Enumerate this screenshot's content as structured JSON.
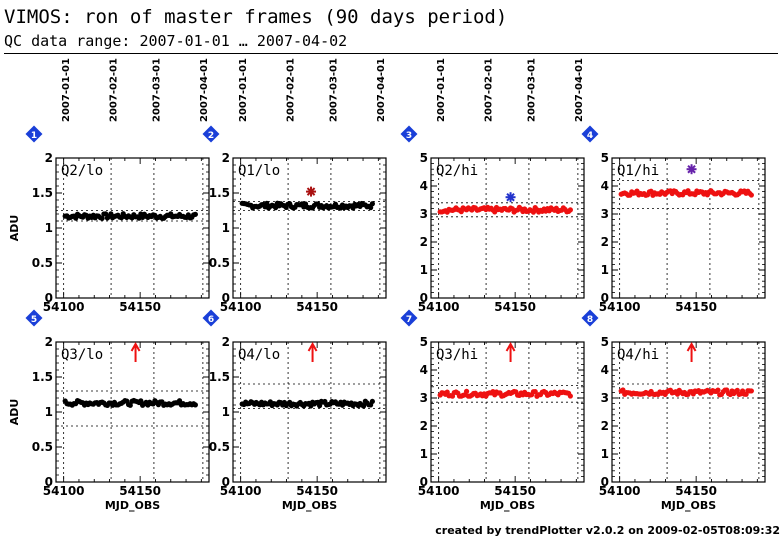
{
  "title": "VIMOS: ron of master frames (90 days period)",
  "subtitle": "QC data range: 2007-01-01 … 2007-04-02",
  "credit": "created by trendPlotter v2.0.2 on 2009-02-05T08:09:32",
  "chart_data": [
    {
      "type": "scatter",
      "panel": "1",
      "label": "Q2/lo",
      "ylim": [
        0,
        2
      ],
      "yticks": [
        "0",
        "0.5",
        "1",
        "1.5",
        "2"
      ],
      "ylabel": "ADU",
      "xlim": [
        54095,
        54195
      ],
      "xticks": [
        "54100",
        "54150"
      ],
      "xlabel": "",
      "top_dates": [
        "2007-01-01",
        "2007-02-01",
        "2007-03-01",
        "2007-04-01"
      ],
      "color": "#000000",
      "mean": 1.17,
      "band": [
        1.1,
        1.25
      ],
      "outlier": null,
      "arrow": false
    },
    {
      "type": "scatter",
      "panel": "2",
      "label": "Q1/lo",
      "ylim": [
        0,
        2
      ],
      "yticks": [
        "0",
        "0.5",
        "1",
        "1.5",
        "2"
      ],
      "ylabel": "",
      "xlim": [
        54095,
        54195
      ],
      "xticks": [
        "54100",
        "54150"
      ],
      "xlabel": "",
      "top_dates": [
        "2007-01-01",
        "2007-02-01",
        "2007-03-01",
        "2007-04-01"
      ],
      "color": "#000000",
      "mean": 1.32,
      "band": [
        1.25,
        1.38
      ],
      "outlier": {
        "x": 54146,
        "y": 1.52,
        "color": "#aa1111"
      },
      "arrow": false
    },
    {
      "type": "scatter",
      "panel": "3",
      "label": "Q2/hi",
      "ylim": [
        0,
        5
      ],
      "yticks": [
        "0",
        "1",
        "2",
        "3",
        "4",
        "5"
      ],
      "ylabel": "",
      "xlim": [
        54095,
        54195
      ],
      "xticks": [
        "54100",
        "54150"
      ],
      "xlabel": "",
      "top_dates": [
        "2007-01-01",
        "2007-02-01",
        "2007-03-01",
        "2007-04-01"
      ],
      "color": "#ee1111",
      "mean": 3.15,
      "band": [
        2.9,
        3.4
      ],
      "outlier": {
        "x": 54147,
        "y": 3.6,
        "color": "#2233cc"
      },
      "arrow": false
    },
    {
      "type": "scatter",
      "panel": "4",
      "label": "Q1/hi",
      "ylim": [
        0,
        5
      ],
      "yticks": [
        "0",
        "1",
        "2",
        "3",
        "4",
        "5"
      ],
      "ylabel": "",
      "xlim": [
        54095,
        54195
      ],
      "xticks": [
        "54100",
        "54150"
      ],
      "xlabel": "",
      "top_dates": [],
      "color": "#ee1111",
      "mean": 3.75,
      "band": [
        3.2,
        4.2
      ],
      "outlier": {
        "x": 54147,
        "y": 4.6,
        "color": "#6622aa"
      },
      "arrow": false
    },
    {
      "type": "scatter",
      "panel": "5",
      "label": "Q3/lo",
      "ylim": [
        0,
        2
      ],
      "yticks": [
        "0",
        "0.5",
        "1",
        "1.5",
        "2"
      ],
      "ylabel": "ADU",
      "xlim": [
        54095,
        54195
      ],
      "xticks": [
        "54100",
        "54150"
      ],
      "xlabel": "MJD_OBS",
      "top_dates": [],
      "color": "#000000",
      "mean": 1.13,
      "band": [
        0.8,
        1.3
      ],
      "outlier": null,
      "arrow": true
    },
    {
      "type": "scatter",
      "panel": "6",
      "label": "Q4/lo",
      "ylim": [
        0,
        2
      ],
      "yticks": [
        "0",
        "0.5",
        "1",
        "1.5",
        "2"
      ],
      "ylabel": "",
      "xlim": [
        54095,
        54195
      ],
      "xticks": [
        "54100",
        "54150"
      ],
      "xlabel": "MJD_OBS",
      "top_dates": [],
      "color": "#000000",
      "mean": 1.12,
      "band": [
        1.05,
        1.4
      ],
      "outlier": null,
      "arrow": true
    },
    {
      "type": "scatter",
      "panel": "7",
      "label": "Q3/hi",
      "ylim": [
        0,
        5
      ],
      "yticks": [
        "0",
        "1",
        "2",
        "3",
        "4",
        "5"
      ],
      "ylabel": "",
      "xlim": [
        54095,
        54195
      ],
      "xticks": [
        "54100",
        "54150"
      ],
      "xlabel": "MJD_OBS",
      "top_dates": [],
      "color": "#ee1111",
      "mean": 3.15,
      "band": [
        2.85,
        3.45
      ],
      "outlier": null,
      "arrow": true
    },
    {
      "type": "scatter",
      "panel": "8",
      "label": "Q4/hi",
      "ylim": [
        0,
        5
      ],
      "yticks": [
        "0",
        "1",
        "2",
        "3",
        "4",
        "5"
      ],
      "ylabel": "",
      "xlim": [
        54095,
        54195
      ],
      "xticks": [
        "54100",
        "54150"
      ],
      "xlabel": "MJD_OBS",
      "top_dates": [],
      "color": "#ee1111",
      "mean": 3.2,
      "band": [
        3.0,
        3.5
      ],
      "outlier": null,
      "arrow": true
    }
  ]
}
